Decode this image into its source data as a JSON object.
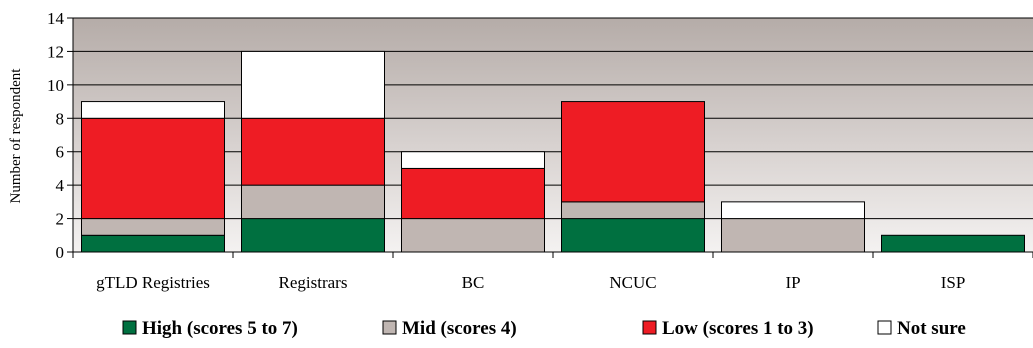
{
  "chart_data": {
    "type": "bar",
    "stacked": true,
    "ylabel": "Number of respondent",
    "xlabel": "",
    "title": "",
    "ylim": [
      0,
      14
    ],
    "yticks": [
      0,
      2,
      4,
      6,
      8,
      10,
      12,
      14
    ],
    "categories": [
      "gTLD Registries",
      "Registrars",
      "BC",
      "NCUC",
      "IP",
      "ISP"
    ],
    "series": [
      {
        "name": "High (scores 5 to 7)",
        "color": "#007040",
        "values": [
          1,
          2,
          0,
          2,
          0,
          1
        ]
      },
      {
        "name": "Mid (scores 4)",
        "color": "#c0b6b2",
        "values": [
          1,
          2,
          2,
          1,
          2,
          0
        ]
      },
      {
        "name": "Low (scores 1 to 3)",
        "color": "#ee1c24",
        "values": [
          6,
          4,
          3,
          6,
          0,
          0
        ]
      },
      {
        "name": "Not sure",
        "color": "#ffffff",
        "values": [
          1,
          4,
          1,
          0,
          1,
          0
        ]
      }
    ],
    "legend_position": "bottom",
    "grid": true
  }
}
